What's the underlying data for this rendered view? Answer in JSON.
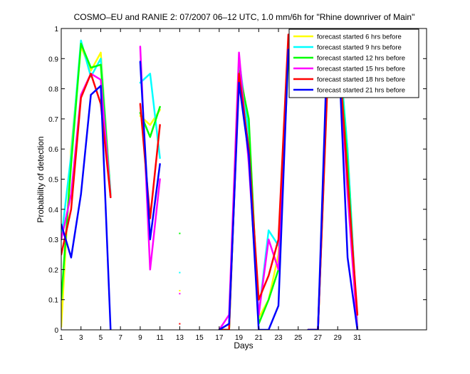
{
  "chart_data": {
    "type": "line",
    "title": "COSMO–EU and RANIE 2: 07/2007 06–12 UTC, 1.0 mm/6h for \"Rhine downriver of Main\"",
    "xlabel": "Days",
    "ylabel": "Probability of detection",
    "xlim": [
      1,
      38
    ],
    "ylim": [
      0,
      1
    ],
    "xticks": [
      1,
      3,
      5,
      7,
      9,
      11,
      13,
      15,
      17,
      19,
      21,
      23,
      25,
      27,
      29,
      31
    ],
    "yticks": [
      0,
      0.1,
      0.2,
      0.3,
      0.4,
      0.5,
      0.6,
      0.7,
      0.8,
      0.9,
      1
    ],
    "ytick_labels": [
      "0",
      "0.1",
      "0.2",
      "0.3",
      "0.4",
      "0.5",
      "0.6",
      "0.7",
      "0.8",
      "0.9",
      "1"
    ],
    "legend_position": "top-right",
    "grid": false,
    "series": [
      {
        "name": "forecast started 6 hrs before",
        "color": "#ffff00",
        "points": [
          [
            1,
            0.01
          ],
          [
            2,
            0.6
          ],
          [
            3,
            0.94
          ],
          [
            4,
            0.86
          ],
          [
            5,
            0.92
          ],
          [
            6,
            0.45
          ],
          [
            9,
            0.71
          ],
          [
            10,
            0.68
          ],
          [
            11,
            0.73
          ],
          [
            17,
            0
          ],
          [
            18,
            0
          ],
          [
            19,
            0.88
          ],
          [
            20,
            0.68
          ],
          [
            21,
            0.04
          ],
          [
            22,
            0.1
          ],
          [
            23,
            0.25
          ],
          [
            24,
            0.93
          ],
          [
            26,
            0
          ],
          [
            27,
            0
          ],
          [
            28,
            0.85
          ],
          [
            29,
            0.98
          ],
          [
            30,
            0.6
          ],
          [
            31,
            0
          ]
        ],
        "points_isolated": [
          [
            13,
            0.13
          ]
        ]
      },
      {
        "name": "forecast started 9 hrs before",
        "color": "#00ffff",
        "points": [
          [
            1,
            0.3
          ],
          [
            2,
            0.58
          ],
          [
            3,
            0.96
          ],
          [
            4,
            0.84
          ],
          [
            5,
            0.9
          ],
          [
            6,
            0.45
          ],
          [
            9,
            0.82
          ],
          [
            10,
            0.85
          ],
          [
            11,
            0.57
          ],
          [
            17,
            0
          ],
          [
            18,
            0
          ],
          [
            19,
            0.9
          ],
          [
            20,
            0.65
          ],
          [
            21,
            0.05
          ],
          [
            22,
            0.33
          ],
          [
            23,
            0.28
          ],
          [
            24,
            0.94
          ],
          [
            26,
            0
          ],
          [
            27,
            0
          ],
          [
            28,
            0.88
          ],
          [
            29,
            0.99
          ],
          [
            30,
            0.6
          ],
          [
            31,
            0
          ]
        ],
        "points_isolated": [
          [
            13,
            0.19
          ]
        ]
      },
      {
        "name": "forecast started 12 hrs before",
        "color": "#00ff00",
        "points": [
          [
            1,
            0.1
          ],
          [
            2,
            0.55
          ],
          [
            3,
            0.95
          ],
          [
            4,
            0.87
          ],
          [
            5,
            0.88
          ],
          [
            6,
            0.44
          ],
          [
            9,
            0.72
          ],
          [
            10,
            0.64
          ],
          [
            11,
            0.74
          ],
          [
            17,
            0
          ],
          [
            18,
            0
          ],
          [
            19,
            0.86
          ],
          [
            20,
            0.7
          ],
          [
            21,
            0.02
          ],
          [
            22,
            0.1
          ],
          [
            23,
            0.2
          ],
          [
            24,
            0.9
          ],
          [
            26,
            0
          ],
          [
            27,
            0
          ],
          [
            28,
            0.87
          ],
          [
            29,
            0.97
          ],
          [
            30,
            0.55
          ],
          [
            31,
            0
          ]
        ],
        "points_isolated": [
          [
            13,
            0.32
          ]
        ]
      },
      {
        "name": "forecast started 15 hrs before",
        "color": "#ff00ff",
        "points": [
          [
            1,
            0.3
          ],
          [
            2,
            0.45
          ],
          [
            3,
            0.78
          ],
          [
            4,
            0.85
          ],
          [
            5,
            0.83
          ],
          [
            6,
            0.44
          ],
          [
            9,
            0.94
          ],
          [
            10,
            0.2
          ],
          [
            11,
            0.5
          ],
          [
            17,
            0
          ],
          [
            18,
            0.05
          ],
          [
            19,
            0.92
          ],
          [
            20,
            0.55
          ],
          [
            21,
            0.05
          ],
          [
            22,
            0.3
          ],
          [
            23,
            0.2
          ],
          [
            24,
            0.95
          ],
          [
            26,
            0
          ],
          [
            27,
            0
          ],
          [
            28,
            0.88
          ],
          [
            29,
            0.99
          ],
          [
            30,
            0.45
          ],
          [
            31,
            0
          ]
        ],
        "points_isolated": [
          [
            13,
            0.12
          ]
        ]
      },
      {
        "name": "forecast started 18 hrs before",
        "color": "#ff0000",
        "points": [
          [
            1,
            0.25
          ],
          [
            2,
            0.4
          ],
          [
            3,
            0.77
          ],
          [
            4,
            0.85
          ],
          [
            5,
            0.75
          ],
          [
            6,
            0.44
          ],
          [
            9,
            0.75
          ],
          [
            10,
            0.37
          ],
          [
            11,
            0.68
          ],
          [
            17,
            0
          ],
          [
            18,
            0
          ],
          [
            19,
            0.85
          ],
          [
            20,
            0.6
          ],
          [
            21,
            0.1
          ],
          [
            22,
            0.18
          ],
          [
            23,
            0.3
          ],
          [
            24,
            0.98
          ],
          [
            26,
            0
          ],
          [
            27,
            0
          ],
          [
            28,
            0.85
          ],
          [
            29,
            0.98
          ],
          [
            30,
            0.5
          ],
          [
            31,
            0.05
          ]
        ],
        "points_isolated": [
          [
            13,
            0.02
          ]
        ]
      },
      {
        "name": "forecast started 21 hrs before",
        "color": "#0000ff",
        "points": [
          [
            1,
            0.35
          ],
          [
            2,
            0.24
          ],
          [
            3,
            0.45
          ],
          [
            4,
            0.78
          ],
          [
            5,
            0.81
          ],
          [
            6,
            0
          ],
          [
            9,
            0.89
          ],
          [
            10,
            0.3
          ],
          [
            11,
            0.55
          ],
          [
            17,
            0
          ],
          [
            18,
            0.02
          ],
          [
            19,
            0.82
          ],
          [
            20,
            0.58
          ],
          [
            21,
            0
          ],
          [
            22,
            0
          ],
          [
            23,
            0.08
          ],
          [
            24,
            0.93
          ],
          [
            26,
            0
          ],
          [
            27,
            0
          ],
          [
            28,
            1
          ],
          [
            29,
            1
          ],
          [
            30,
            0.24
          ],
          [
            31,
            0
          ]
        ],
        "points_isolated": []
      }
    ]
  }
}
